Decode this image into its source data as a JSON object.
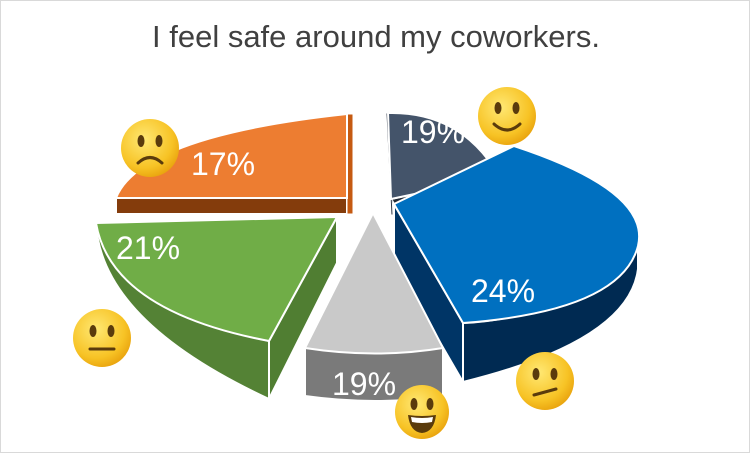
{
  "chart_data": {
    "type": "pie",
    "title": "I feel safe around my coworkers.",
    "slices": [
      {
        "label": "19%",
        "value": 19,
        "color": "#44546a",
        "emoji": "slightly-smiling-face-icon"
      },
      {
        "label": "24%",
        "value": 24,
        "color": "#0070c0",
        "emoji": "confused-face-icon"
      },
      {
        "label": "19%",
        "value": 19,
        "color": "#c9c9c9",
        "emoji": "grinning-face-icon"
      },
      {
        "label": "21%",
        "value": 21,
        "color": "#70ad47",
        "emoji": "neutral-face-icon"
      },
      {
        "label": "17%",
        "value": 17,
        "color": "#ed7d31",
        "emoji": "frowning-face-icon"
      }
    ],
    "legend": "none",
    "style": "3d-exploded"
  }
}
